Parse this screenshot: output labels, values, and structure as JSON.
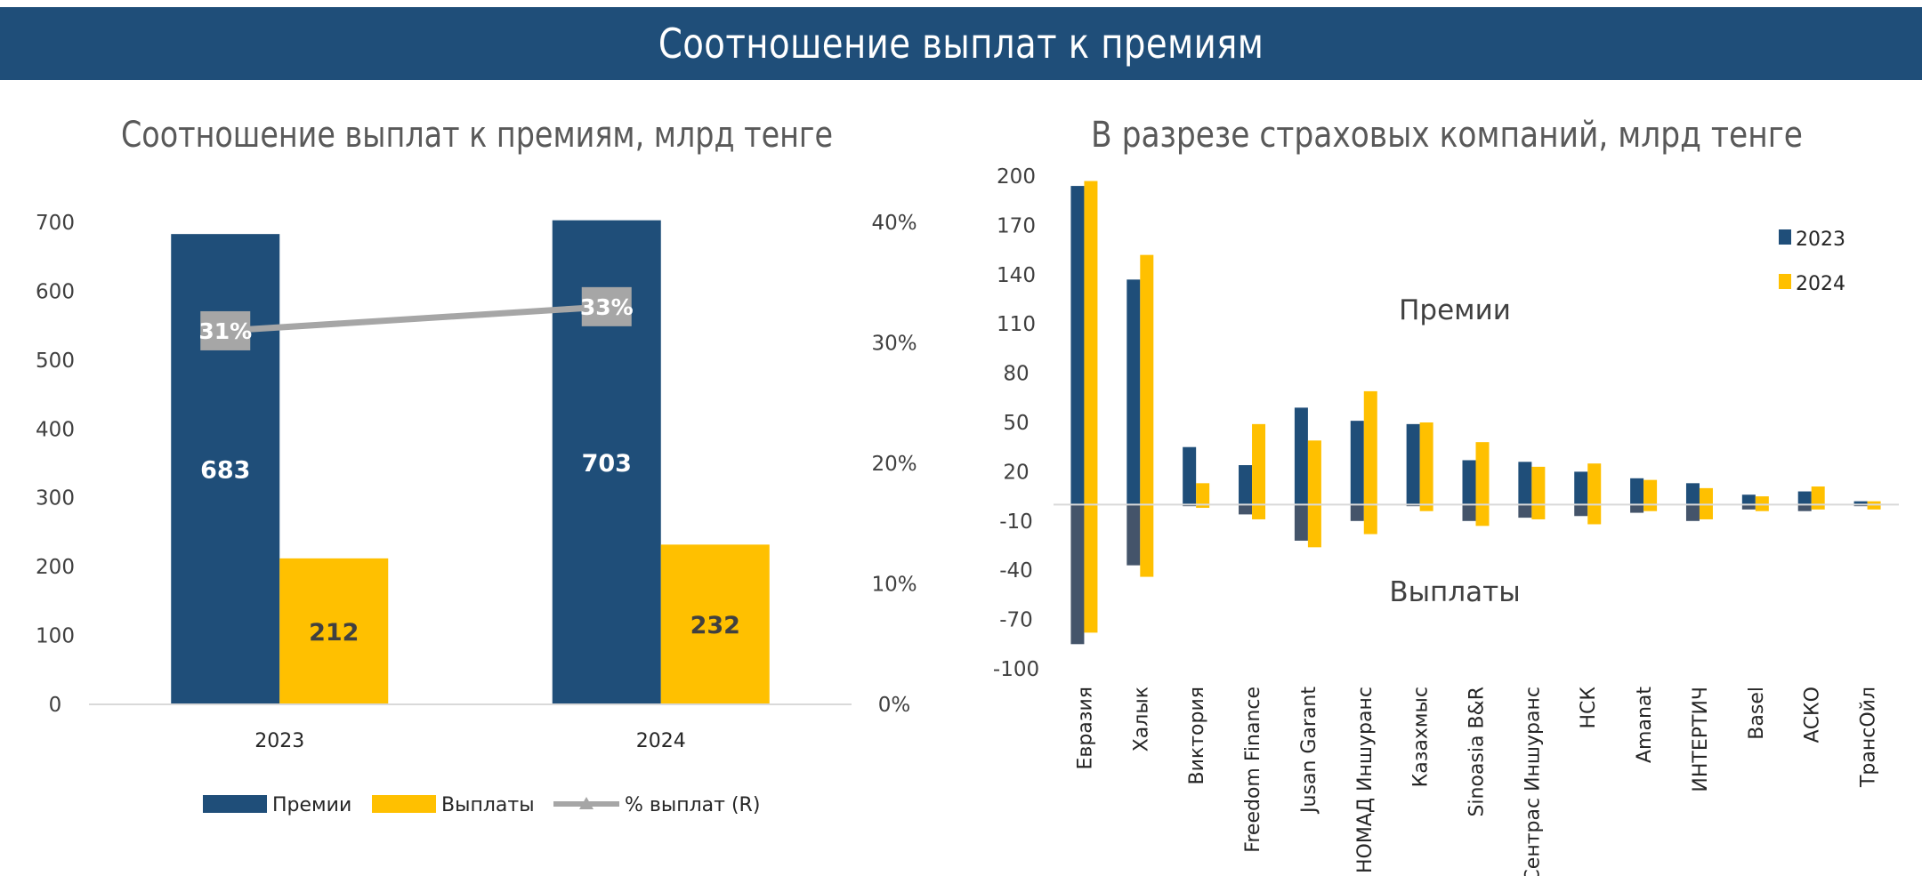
{
  "page": {
    "title": "Соотношение выплат к премиям"
  },
  "colors": {
    "navy": "#1f4e79",
    "gold": "#ffc000",
    "grey_line": "#a6a6a6",
    "slate": "#44546a"
  },
  "chart_data": [
    {
      "type": "bar",
      "title": "Соотношение выплат к премиям, млрд тенге",
      "categories": [
        "2023",
        "2024"
      ],
      "series": [
        {
          "name": "Премии",
          "values": [
            683,
            703
          ],
          "labels": [
            "683",
            "703"
          ]
        },
        {
          "name": "Выплаты",
          "values": [
            212,
            232
          ],
          "labels": [
            "212",
            "232"
          ]
        }
      ],
      "line_series": {
        "name": "% выплат (R)",
        "values": [
          31,
          33
        ],
        "labels": [
          "31%",
          "33%"
        ]
      },
      "ylim": [
        0,
        700
      ],
      "yticks": [
        0,
        100,
        200,
        300,
        400,
        500,
        600,
        700
      ],
      "ytick_labels": [
        "0",
        "100",
        "200",
        "300",
        "400",
        "500",
        "600",
        "700"
      ],
      "y2lim": [
        0,
        40
      ],
      "y2ticks": [
        0,
        10,
        20,
        30,
        40
      ],
      "y2tick_labels": [
        "0%",
        "10%",
        "20%",
        "30%",
        "40%"
      ],
      "legend_position": "bottom"
    },
    {
      "type": "bar",
      "title": "В разрезе страховых компаний, млрд тенге",
      "categories": [
        "Евразия",
        "Халык",
        "Виктория",
        "Freedom Finance",
        "Jusan Garant",
        "НОМАД Иншуранс",
        "Казахмыс",
        "Sinoasia B&R",
        "Сентрас Иншуранс",
        "НСК",
        "Amanat",
        "ИНТЕРТИЧ",
        "Basel",
        "АСКО",
        "ТрансОйл"
      ],
      "series": [
        {
          "name": "2023",
          "premiums": [
            194,
            137,
            35,
            24,
            59,
            51,
            49,
            27,
            26,
            20,
            16,
            13,
            6,
            8,
            2
          ],
          "payouts": [
            -85,
            -37,
            -1,
            -6,
            -22,
            -10,
            -1,
            -10,
            -8,
            -7,
            -5,
            -10,
            -3,
            -4,
            -1
          ]
        },
        {
          "name": "2024",
          "premiums": [
            197,
            152,
            13,
            49,
            39,
            69,
            50,
            38,
            23,
            25,
            15,
            10,
            5,
            11,
            2
          ],
          "payouts": [
            -78,
            -44,
            -2,
            -9,
            -26,
            -18,
            -4,
            -13,
            -9,
            -12,
            -4,
            -9,
            -4,
            -3,
            -3
          ]
        }
      ],
      "ylim": [
        -100,
        200
      ],
      "yticks": [
        -100,
        -70,
        -40,
        -10,
        20,
        50,
        80,
        110,
        140,
        170,
        200
      ],
      "ytick_labels": [
        "-100",
        "-70",
        "-40",
        "-10",
        "20",
        "50",
        "80",
        "110",
        "140",
        "170",
        "200"
      ],
      "annotations": [
        "Премии",
        "Выплаты"
      ],
      "legend_position": "top-right"
    }
  ]
}
